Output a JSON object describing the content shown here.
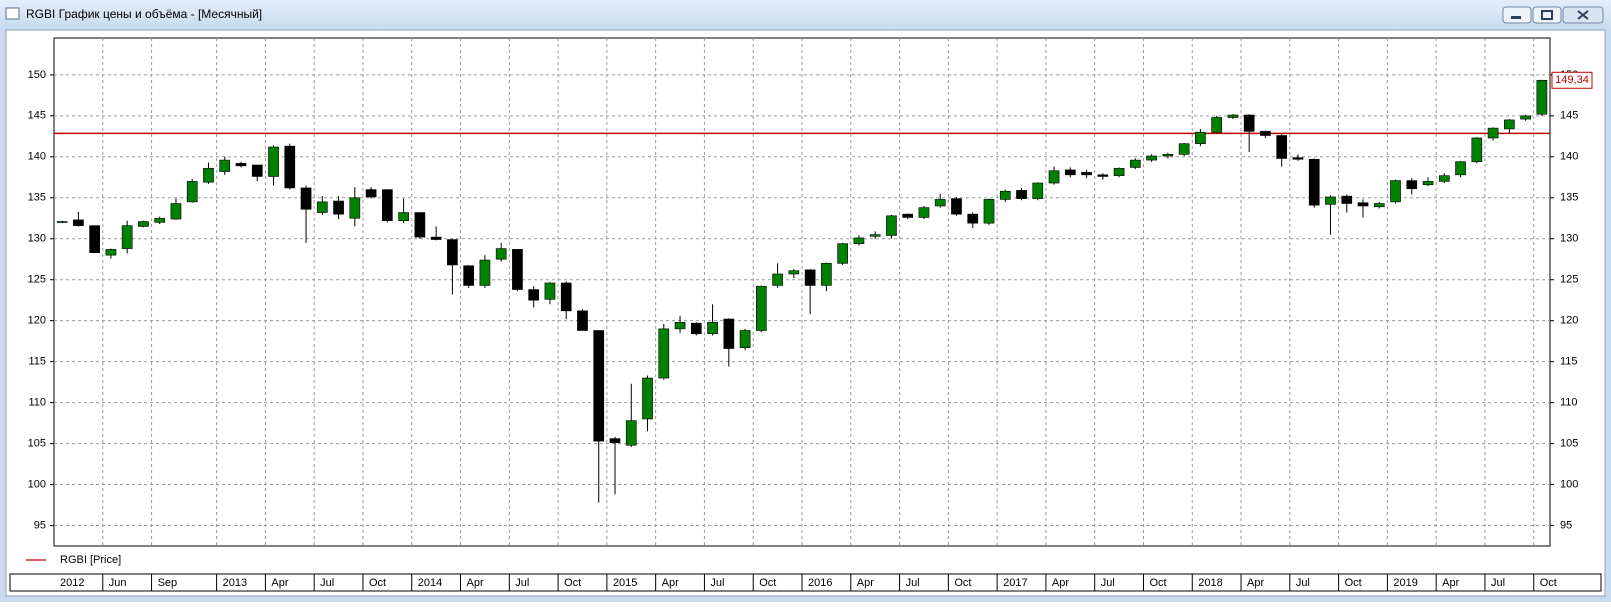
{
  "window_title": "RGBI График цены и объёма - [Месячный]",
  "chart_data": {
    "type": "candlestick",
    "categories": [
      "2012",
      null,
      null,
      "Jun",
      null,
      null,
      "Sep",
      null,
      null,
      null,
      "2013",
      null,
      null,
      "Apr",
      null,
      null,
      "Jul",
      null,
      null,
      "Oct",
      null,
      null,
      "2014",
      null,
      null,
      "Apr",
      null,
      null,
      "Jul",
      null,
      null,
      "Oct",
      null,
      null,
      "2015",
      null,
      null,
      "Apr",
      null,
      null,
      "Jul",
      null,
      null,
      "Oct",
      null,
      null,
      "2016",
      null,
      null,
      "Apr",
      null,
      null,
      "Jul",
      null,
      null,
      "Oct",
      null,
      null,
      "2017",
      null,
      null,
      "Apr",
      null,
      null,
      "Jul",
      null,
      null,
      "Oct",
      null,
      null,
      "2018",
      null,
      null,
      "Apr",
      null,
      null,
      "Jul",
      null,
      null,
      "Oct",
      null,
      null,
      "2019",
      null,
      null,
      "Apr",
      null,
      null,
      "Jul",
      null,
      null,
      "Oct"
    ],
    "series": [
      {
        "name": "RGBI [Price]",
        "color": "#c00000",
        "up_color": "#008000",
        "down_color": "#000000",
        "open": [
          132,
          132.3,
          131.6,
          128,
          128.8,
          131.5,
          132,
          132.4,
          134.5,
          136.9,
          138.2,
          139.2,
          139,
          137.6,
          141.3,
          136.2,
          133.2,
          134.6,
          132.5,
          136,
          136,
          132.2,
          133.2,
          130.2,
          129.9,
          126.7,
          124.3,
          127.5,
          128.7,
          123.8,
          122.6,
          124.6,
          121.2,
          118.8,
          105.6,
          104.8,
          108,
          113,
          119,
          119.7,
          118.4,
          120.2,
          116.7,
          118.8,
          124.3,
          125.7,
          126.2,
          124.3,
          127,
          129.4,
          130.3,
          130.4,
          133,
          132.6,
          134,
          134.9,
          133,
          131.9,
          134.8,
          135.9,
          134.9,
          136.8,
          138.4,
          138.1,
          137.8,
          137.7,
          138.7,
          139.6,
          140.1,
          140.3,
          141.6,
          143,
          144.8,
          145.1,
          143.1,
          142.6,
          139.9,
          139.7,
          134.2,
          135.2,
          134.4,
          133.9,
          134.5,
          137.1,
          136.6,
          137,
          137.8,
          139.4,
          142.3,
          143.4,
          144.6,
          145.2
        ],
        "high": [
          132.2,
          133.3,
          131.6,
          128.8,
          132.2,
          132.2,
          132.7,
          134.9,
          137.3,
          139.3,
          140,
          139.4,
          139,
          141.4,
          141.6,
          136.5,
          135.2,
          135.2,
          136.3,
          136.3,
          136,
          134.9,
          133.2,
          131.5,
          130,
          126.8,
          128,
          129.5,
          128.7,
          124.2,
          124.7,
          124.8,
          121.4,
          118.8,
          105.8,
          112.3,
          113.3,
          119.6,
          120.6,
          119.8,
          122,
          120.3,
          119,
          124.3,
          127,
          126.3,
          126.3,
          127.1,
          129.5,
          130.4,
          130.9,
          132.9,
          133.1,
          134,
          135.5,
          135.1,
          133.2,
          134.9,
          136,
          136.2,
          136.9,
          138.8,
          138.7,
          138.4,
          138,
          138.7,
          139.8,
          140.3,
          140.5,
          141.7,
          143.4,
          145,
          145.2,
          145.2,
          143.2,
          142.8,
          140.3,
          139.8,
          135.3,
          135.4,
          134.8,
          134.5,
          137.2,
          137.4,
          137.5,
          138,
          139.5,
          142.4,
          143.6,
          144.6,
          145.1,
          149.4
        ],
        "low": [
          131.9,
          131.5,
          128.3,
          127.6,
          128.2,
          131.4,
          131.8,
          132.3,
          134.4,
          136.7,
          137.8,
          138.7,
          137,
          136.5,
          136,
          129.5,
          132.9,
          132.4,
          131.5,
          134.9,
          132,
          131.9,
          130,
          129.8,
          123.2,
          124,
          124,
          127.2,
          123.6,
          121.6,
          122,
          120.2,
          118.8,
          97.8,
          98.8,
          104.6,
          106.5,
          112.8,
          118.5,
          118.2,
          118.2,
          114.4,
          116.4,
          118.6,
          124,
          125.2,
          120.8,
          123.6,
          126.8,
          129.2,
          130,
          130,
          132.4,
          132.4,
          133.8,
          132.8,
          131.3,
          131.7,
          134.5,
          134.7,
          134.7,
          136.6,
          137.5,
          137.4,
          137.2,
          137.5,
          138.5,
          139.4,
          139.8,
          140.1,
          141.3,
          142.8,
          144.6,
          140.6,
          142.3,
          138.8,
          139.5,
          133.8,
          130.5,
          133.2,
          132.6,
          133.7,
          134.3,
          135.4,
          136.4,
          136.8,
          137.5,
          139.2,
          142,
          142.8,
          144.4,
          145
        ],
        "close": [
          132.1,
          131.6,
          128.3,
          128.7,
          131.6,
          132.1,
          132.5,
          134.3,
          137,
          138.6,
          139.6,
          138.9,
          137.6,
          141.2,
          136.2,
          133.6,
          134.5,
          133,
          135,
          135.1,
          132.2,
          133.2,
          130.2,
          129.9,
          126.8,
          124.3,
          127.4,
          128.8,
          123.8,
          122.5,
          124.6,
          121.2,
          118.8,
          105.3,
          105.1,
          107.8,
          113,
          119,
          119.8,
          118.4,
          119.8,
          116.6,
          118.8,
          124.2,
          125.7,
          126.1,
          124.3,
          127,
          129.4,
          130.1,
          130.5,
          132.8,
          132.6,
          133.8,
          134.8,
          133,
          131.9,
          134.8,
          135.8,
          134.9,
          136.8,
          138.3,
          137.8,
          137.8,
          137.6,
          138.6,
          139.6,
          140.1,
          140.3,
          141.6,
          143,
          144.8,
          145.1,
          143.1,
          142.6,
          139.8,
          139.7,
          134.1,
          135.1,
          134.3,
          134,
          134.3,
          137.1,
          136.1,
          137,
          137.7,
          139.4,
          142.3,
          143.5,
          144.5,
          145,
          149.34
        ]
      }
    ],
    "last_price": {
      "value": 149.34,
      "label": "149,34"
    },
    "hline": 142.86,
    "hline_color": "#c00000",
    "ylim": [
      92.5,
      154.5
    ],
    "yticks": [
      95,
      100,
      105,
      110,
      115,
      120,
      125,
      130,
      135,
      140,
      145,
      150
    ],
    "grid": true
  }
}
